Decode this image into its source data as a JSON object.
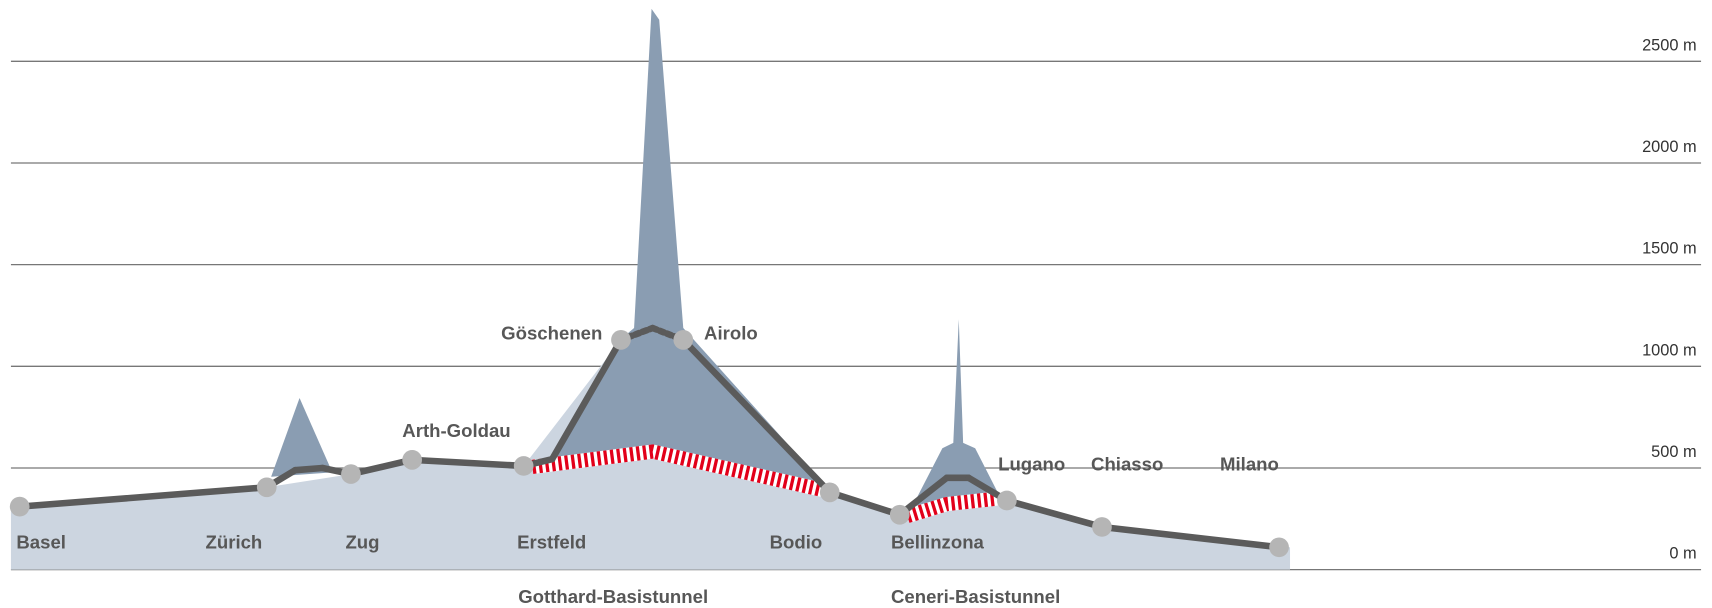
{
  "chart_data": {
    "type": "profile",
    "stations": [
      {
        "name": "Basel",
        "elevation": 310
      },
      {
        "name": "Zürich",
        "elevation": 405
      },
      {
        "name": "Zug",
        "elevation": 470
      },
      {
        "name": "Arth-Goldau",
        "elevation": 540
      },
      {
        "name": "Erstfeld",
        "elevation": 510
      },
      {
        "name": "Göschenen",
        "elevation": 1130
      },
      {
        "name": "Airolo",
        "elevation": 1130
      },
      {
        "name": "Bodio",
        "elevation": 380
      },
      {
        "name": "Bellinzona",
        "elevation": 270
      },
      {
        "name": "Lugano",
        "elevation": 340
      },
      {
        "name": "Chiasso",
        "elevation": 210
      },
      {
        "name": "Milano",
        "elevation": 110
      }
    ],
    "tunnels": [
      "Gotthard-Basistunnel",
      "Ceneri-Basistunnel"
    ],
    "ylim": [
      0,
      2500
    ],
    "yticks": [
      {
        "value": 0,
        "label": "0 m"
      },
      {
        "value": 500,
        "label": "500 m"
      },
      {
        "value": 1000,
        "label": "1000 m"
      },
      {
        "value": 1500,
        "label": "1500 m"
      },
      {
        "value": 2000,
        "label": "2000 m"
      },
      {
        "value": 2500,
        "label": "2500 m"
      }
    ],
    "grid": true
  }
}
